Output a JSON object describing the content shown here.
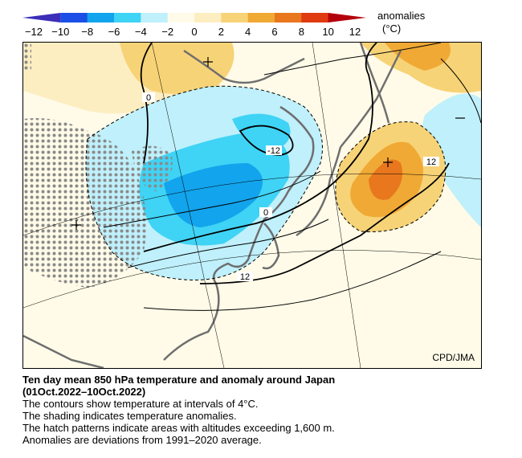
{
  "colorbar": {
    "title": "anomalies",
    "units": "(°C)",
    "ticks": [
      "−12",
      "−10",
      "−8",
      "−6",
      "−4",
      "−2",
      "0",
      "2",
      "4",
      "6",
      "8",
      "10",
      "12"
    ],
    "colors": [
      "#3c2eb8",
      "#1c4fe6",
      "#12a4ec",
      "#3fd3f5",
      "#bff0fb",
      "#fffbe8",
      "#fdeec2",
      "#f7d377",
      "#f0a935",
      "#e8771d",
      "#e03a10",
      "#b4000c"
    ]
  },
  "map": {
    "contour_labels": [
      "0",
      "-12",
      "12",
      "0",
      "12"
    ],
    "credit": "CPD/JMA"
  },
  "caption": {
    "title_line1": "Ten day mean 850 hPa temperature and anomaly around Japan",
    "title_line2": "(01Oct.2022–10Oct.2022)",
    "line1": "The contours show temperature at intervals of 4°C.",
    "line2": "The shading indicates temperature anomalies.",
    "line3": "The hatch patterns indicate areas with altitudes exceeding 1,600 m.",
    "line4": "Anomalies are deviations from 1991–2020 average."
  }
}
